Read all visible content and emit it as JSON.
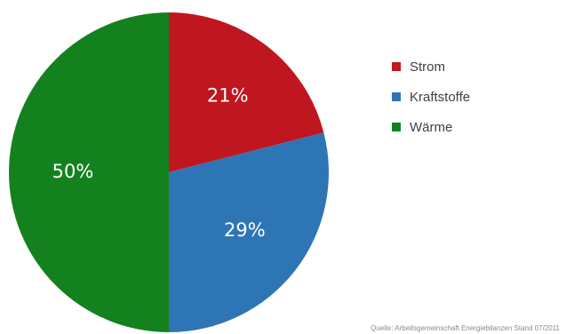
{
  "chart_data": {
    "type": "pie",
    "series": [
      {
        "name": "Strom",
        "value": 21,
        "label": "21%",
        "color": "#c0161f"
      },
      {
        "name": "Kraftstoffe",
        "value": 29,
        "label": "29%",
        "color": "#2e75b6"
      },
      {
        "name": "Wärme",
        "value": 50,
        "label": "50%",
        "color": "#14811f"
      }
    ],
    "legend_position": "right",
    "annotation": "Quelle: Arbeitsgemeinschaft Energiebilanzen Stand 07/2011"
  }
}
